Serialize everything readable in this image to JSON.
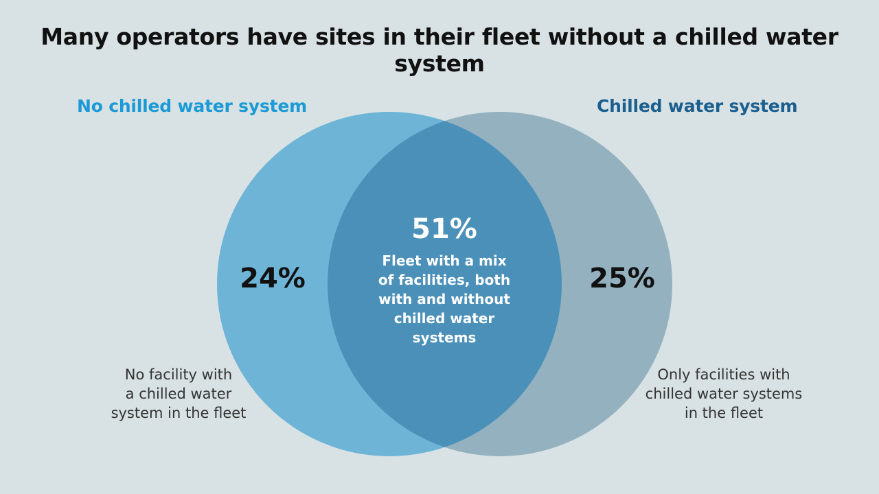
{
  "title": "Many operators have sites in their fleet without a chilled water system",
  "sets": {
    "left": {
      "label": "No chilled water system",
      "percent": "24%",
      "description": "No facility with\na chilled water\nsystem in the fleet",
      "color": "#6db4d6"
    },
    "right": {
      "label": "Chilled water system",
      "percent": "25%",
      "description": "Only facilities with\nchilled water systems\nin the fleet",
      "color": "#94b1c0"
    },
    "overlap": {
      "percent": "51%",
      "description": "Fleet with a mix\nof facilities, both\nwith and without\nchilled water\nsystems",
      "color": "#4a90b8"
    }
  },
  "colors": {
    "background": "#d8e1e3",
    "left_label": "#1a9ad6",
    "right_label": "#1a5f8f"
  }
}
